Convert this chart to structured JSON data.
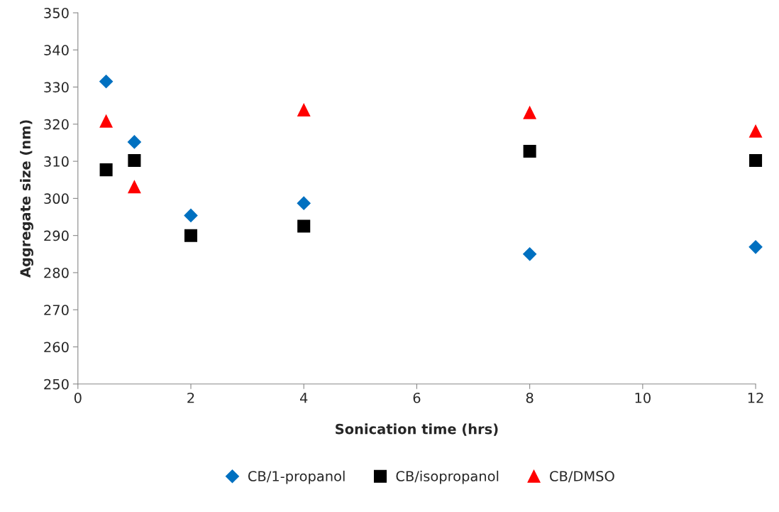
{
  "chart_data": {
    "type": "scatter",
    "xlabel": "Sonication time (hrs)",
    "ylabel": "Aggregate size (nm)",
    "xlim": [
      0,
      12
    ],
    "xticks": [
      0,
      2,
      4,
      6,
      8,
      10,
      12
    ],
    "ylim": [
      250,
      350
    ],
    "yticks": [
      250,
      260,
      270,
      280,
      290,
      300,
      310,
      320,
      330,
      340,
      350
    ],
    "grid": false,
    "legend": "bottom",
    "series": [
      {
        "name": "CB/1-propanol",
        "color": "#0070c0",
        "marker": "diamond",
        "x": [
          0.5,
          1,
          2,
          4,
          8,
          12
        ],
        "values": [
          331.5,
          315.2,
          295.4,
          298.7,
          285.0,
          286.9
        ]
      },
      {
        "name": "CB/isopropanol",
        "color": "#000000",
        "marker": "square",
        "x": [
          0.5,
          1,
          2,
          4,
          8,
          12
        ],
        "values": [
          307.7,
          310.2,
          290.0,
          292.5,
          312.7,
          310.2
        ]
      },
      {
        "name": "CB/DMSO",
        "color": "#ff0000",
        "marker": "triangle",
        "x": [
          0.5,
          1,
          4,
          8,
          12
        ],
        "values": [
          320.8,
          303.1,
          323.8,
          323.1,
          318.1
        ]
      }
    ]
  }
}
